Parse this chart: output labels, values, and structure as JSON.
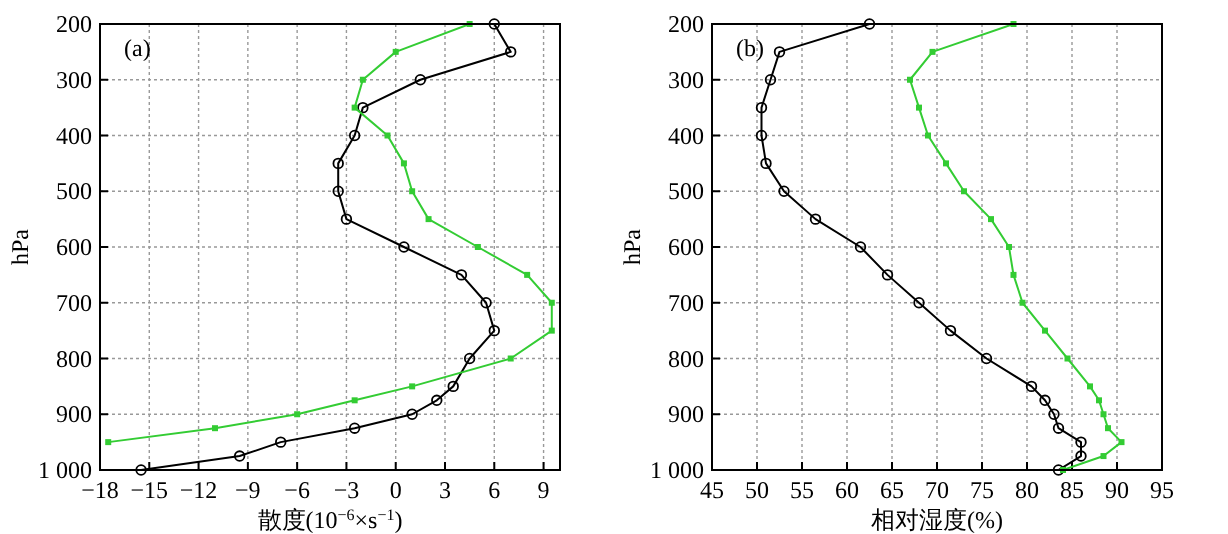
{
  "chart_data": [
    {
      "type": "line",
      "annotations": [
        "(a)"
      ],
      "xlabel": "散度(10$^{−6}$×s$^{−1}$)",
      "ylabel": "hPa",
      "xlim": [
        -18,
        10
      ],
      "xticks": [
        -18,
        -15,
        -12,
        -9,
        -6,
        -3,
        0,
        3,
        6,
        9
      ],
      "ylim": [
        1000,
        200
      ],
      "yticks": [
        200,
        300,
        400,
        500,
        600,
        700,
        800,
        900,
        {
          "value": 1000,
          "label": "1 000"
        }
      ],
      "grid": true,
      "line_style": "solid",
      "series": [
        {
          "color": "#000000",
          "marker": "circle",
          "x": [
            6,
            7,
            1.5,
            -2,
            -2.5,
            -3.5,
            -3.5,
            -3,
            0.5,
            4,
            5.5,
            6,
            4.5,
            3.5,
            2.5,
            1,
            -2.5,
            -7,
            -9.5,
            -15.5
          ],
          "values": [
            200,
            250,
            300,
            350,
            400,
            450,
            500,
            550,
            600,
            650,
            700,
            750,
            800,
            850,
            875,
            900,
            925,
            950,
            975,
            1000
          ]
        },
        {
          "color": "#33cc33",
          "marker": "square",
          "x": [
            4.5,
            0,
            -2,
            -2.5,
            -0.5,
            0.5,
            1,
            2,
            5,
            8,
            9.5,
            9.5,
            7,
            1,
            -2.5,
            -6,
            -11,
            -17.5
          ],
          "values": [
            200,
            250,
            300,
            350,
            400,
            450,
            500,
            550,
            600,
            650,
            700,
            750,
            800,
            850,
            875,
            900,
            925,
            950
          ]
        }
      ]
    },
    {
      "type": "line",
      "annotations": [
        "(b)"
      ],
      "xlabel": "相对湿度(%)",
      "ylabel": "hPa",
      "xlim": [
        45,
        95
      ],
      "xticks": [
        45,
        50,
        55,
        60,
        65,
        70,
        75,
        80,
        85,
        90,
        95
      ],
      "ylim": [
        1000,
        200
      ],
      "yticks": [
        200,
        300,
        400,
        500,
        600,
        700,
        800,
        900,
        {
          "value": 1000,
          "label": "1 000"
        }
      ],
      "grid": true,
      "line_style": "solid",
      "series": [
        {
          "color": "#000000",
          "marker": "circle",
          "x": [
            62.5,
            52.5,
            51.5,
            50.5,
            50.5,
            51,
            53,
            56.5,
            61.5,
            64.5,
            68,
            71.5,
            75.5,
            80.5,
            82,
            83,
            83.5,
            86,
            86,
            83.5
          ],
          "values": [
            200,
            250,
            300,
            350,
            400,
            450,
            500,
            550,
            600,
            650,
            700,
            750,
            800,
            850,
            875,
            900,
            925,
            950,
            975,
            1000
          ]
        },
        {
          "color": "#33cc33",
          "marker": "square",
          "x": [
            78.5,
            69.5,
            67,
            68,
            69,
            71,
            73,
            76,
            78,
            78.5,
            79.5,
            82,
            84.5,
            87,
            88,
            88.5,
            89,
            90.5,
            88.5,
            84
          ],
          "values": [
            200,
            250,
            300,
            350,
            400,
            450,
            500,
            550,
            600,
            650,
            700,
            750,
            800,
            850,
            875,
            900,
            925,
            950,
            975,
            1000
          ]
        }
      ]
    }
  ]
}
